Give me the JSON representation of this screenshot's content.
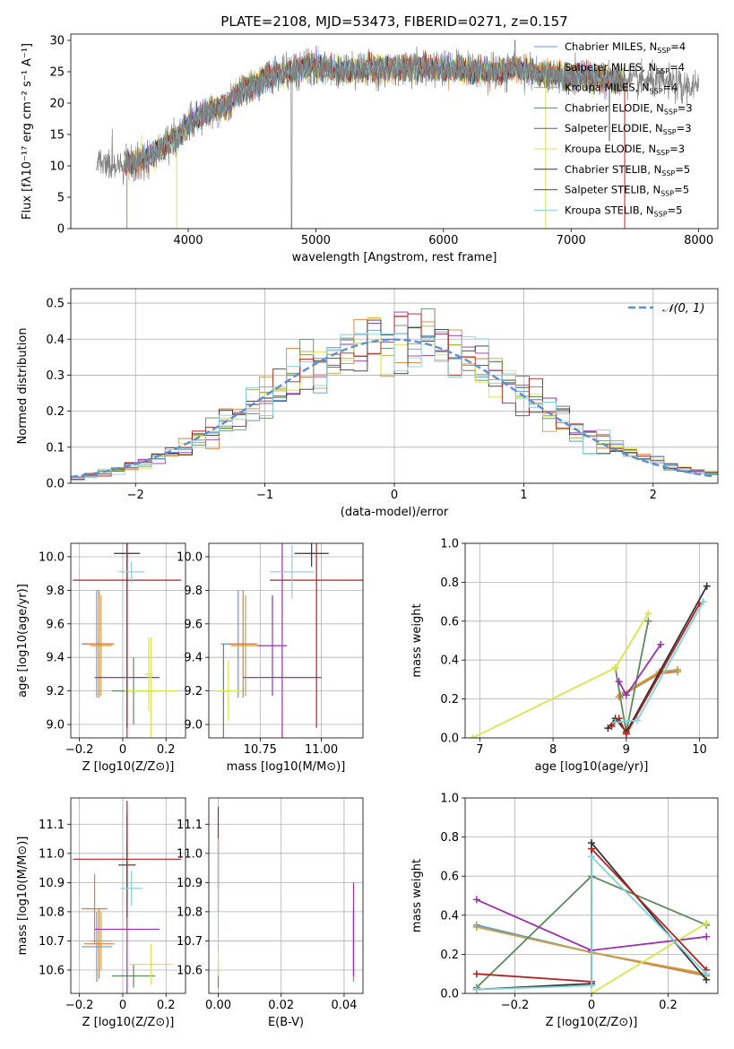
{
  "figure_title": "PLATE=2108, MJD=53473, FIBERID=0271, z=0.157",
  "series": [
    {
      "label": "Chabrier MILES, N",
      "sub": "SSP",
      "tail": "=4",
      "color": "#5a9bd4"
    },
    {
      "label": "Salpeter MILES, N",
      "sub": "SSP",
      "tail": "=4",
      "color": "#e07b39"
    },
    {
      "label": "Kroupa MILES, N",
      "sub": "SSP",
      "tail": "=4",
      "color": "#c8a046"
    },
    {
      "label": "Chabrier ELODIE, N",
      "sub": "SSP",
      "tail": "=3",
      "color": "#5c8a5c"
    },
    {
      "label": "Salpeter ELODIE, N",
      "sub": "SSP",
      "tail": "=3",
      "color": "#9b30b0"
    },
    {
      "label": "Kroupa ELODIE, N",
      "sub": "SSP",
      "tail": "=3",
      "color": "#d4e84a"
    },
    {
      "label": "Chabrier STELIB, N",
      "sub": "SSP",
      "tail": "=5",
      "color": "#333333"
    },
    {
      "label": "Salpeter STELIB, N",
      "sub": "SSP",
      "tail": "=5",
      "color": "#b22222"
    },
    {
      "label": "Kroupa STELIB, N",
      "sub": "SSP",
      "tail": "=5",
      "color": "#7ed3e0"
    }
  ],
  "chart_data": [
    {
      "id": "spectrum",
      "type": "line",
      "xlabel": "wavelength [Angstrom, rest frame]",
      "ylabel": "Flux [fλ10⁻¹⁷ erg cm⁻² s⁻¹ A⁻¹]",
      "xlim": [
        3080,
        8150
      ],
      "ylim": [
        0,
        31
      ],
      "xticks": [
        4000,
        5000,
        6000,
        7000,
        8000
      ],
      "yticks": [
        0,
        5,
        10,
        15,
        20,
        25,
        30
      ],
      "legend": "upper right",
      "data_color": "#808080",
      "data_range": [
        3280,
        8000
      ],
      "continuum_points": [
        [
          3280,
          10.2
        ],
        [
          3550,
          10.5
        ],
        [
          3700,
          11.5
        ],
        [
          3900,
          14.5
        ],
        [
          4000,
          16.5
        ],
        [
          4150,
          18.5
        ],
        [
          4300,
          19.5
        ],
        [
          4400,
          21.5
        ],
        [
          4600,
          24
        ],
        [
          4800,
          25
        ],
        [
          5000,
          25.8
        ],
        [
          5200,
          25.2
        ],
        [
          5400,
          25.5
        ],
        [
          5600,
          25.5
        ],
        [
          5800,
          25.8
        ],
        [
          6000,
          25.5
        ],
        [
          6200,
          25.3
        ],
        [
          6400,
          25
        ],
        [
          6600,
          25.5
        ],
        [
          6800,
          24.5
        ],
        [
          7000,
          24.2
        ],
        [
          7200,
          24
        ],
        [
          7400,
          23.5
        ],
        [
          7600,
          23.5
        ],
        [
          7800,
          23
        ],
        [
          8000,
          22.5
        ]
      ],
      "model_range": [
        3500,
        7420
      ],
      "model_cutoffs": [
        {
          "series": 1,
          "x": 3520
        },
        {
          "series": 5,
          "x": 3910
        },
        {
          "series": 5,
          "x": 6800
        },
        {
          "series": 7,
          "x": 7420
        }
      ],
      "data_features": [
        {
          "x": 4810,
          "y": 0
        },
        {
          "x": 6560,
          "y": 30
        },
        {
          "x": 7300,
          "y": 14
        },
        {
          "x": 7870,
          "y": 20
        }
      ]
    },
    {
      "id": "residuals",
      "type": "line",
      "xlabel": "(data-model)/error",
      "ylabel": "Normed distribution",
      "xlim": [
        -2.5,
        2.5
      ],
      "ylim": [
        0,
        0.54
      ],
      "xticks": [
        -2,
        -1,
        0,
        1,
        2
      ],
      "yticks": [
        0,
        0.1,
        0.2,
        0.3,
        0.4,
        0.5
      ],
      "legend": "upper right",
      "gaussian": {
        "label": "𝒩(0, 1)",
        "mean": 0,
        "sigma": 1,
        "color": "#5b8fd6"
      },
      "bins": 48
    },
    {
      "id": "age-vs-Z",
      "type": "scatter",
      "xlabel": "Z [log10(Z/Z⊙)]",
      "ylabel": "age [log10(age/yr)]",
      "xlim": [
        -0.24,
        0.29
      ],
      "ylim": [
        8.92,
        10.08
      ],
      "xticks": [
        -0.2,
        0.0,
        0.2
      ],
      "yticks": [
        9.0,
        9.2,
        9.4,
        9.6,
        9.8,
        10.0
      ],
      "errorbars": [
        {
          "s": 0,
          "x": -0.12,
          "xerr": 0.07,
          "y": 9.48,
          "yerr": 0.32
        },
        {
          "s": 1,
          "x": -0.11,
          "xerr": 0.07,
          "y": 9.48,
          "yerr": 0.32
        },
        {
          "s": 2,
          "x": -0.1,
          "xerr": 0.05,
          "y": 9.47,
          "yerr": 0.3
        },
        {
          "s": 3,
          "x": 0.05,
          "xerr": 0.1,
          "y": 9.2,
          "yerr": 0.2
        },
        {
          "s": 4,
          "x": 0.02,
          "xerr": 0.15,
          "y": 9.28,
          "yerr": 0.8
        },
        {
          "s": 5,
          "x": 0.13,
          "xerr": 0.12,
          "y": 9.2,
          "yerr": 0.32
        },
        {
          "s": 6,
          "x": 0.02,
          "xerr": 0.06,
          "y": 10.02,
          "yerr": 0.08
        },
        {
          "s": 7,
          "x": 0.02,
          "xerr": 0.25,
          "y": 9.86,
          "yerr": 0.88
        },
        {
          "s": 8,
          "x": 0.04,
          "xerr": 0.06,
          "y": 9.91,
          "yerr": 0.06
        },
        {
          "s": 5,
          "x": 0.12,
          "xerr": 0.02,
          "y": 9.3,
          "yerr": 0.22
        }
      ]
    },
    {
      "id": "age-vs-mass",
      "type": "scatter",
      "xlabel": "mass [log10(M/M⊙)]",
      "ylabel": "",
      "xlim": [
        10.54,
        11.17
      ],
      "ylim": [
        8.92,
        10.08
      ],
      "xticks": [
        10.75,
        11.0
      ],
      "xticklabels": [
        "10.75",
        "11.00"
      ],
      "yticks": [
        9.0,
        9.2,
        9.4,
        9.6,
        9.8,
        10.0
      ],
      "errorbars": [
        {
          "s": 0,
          "x": 10.66,
          "xerr": 0.07,
          "y": 9.48,
          "yerr": 0.32
        },
        {
          "s": 1,
          "x": 10.68,
          "xerr": 0.06,
          "y": 9.48,
          "yerr": 0.32
        },
        {
          "s": 2,
          "x": 10.69,
          "xerr": 0.06,
          "y": 9.47,
          "yerr": 0.3
        },
        {
          "s": 3,
          "x": 10.6,
          "xerr": 0.02,
          "y": 9.2,
          "yerr": 0.28
        },
        {
          "s": 4,
          "x": 10.84,
          "xerr": 0.16,
          "y": 9.28,
          "yerr": 0.82
        },
        {
          "s": 5,
          "x": 10.62,
          "xerr": 0.05,
          "y": 9.2,
          "yerr": 0.18
        },
        {
          "s": 6,
          "x": 10.96,
          "xerr": 0.07,
          "y": 10.02,
          "yerr": 0.08
        },
        {
          "s": 7,
          "x": 10.98,
          "xerr": 0.19,
          "y": 9.86,
          "yerr": 0.88
        },
        {
          "s": 8,
          "x": 10.88,
          "xerr": 0.09,
          "y": 9.91,
          "yerr": 0.16
        },
        {
          "s": 4,
          "x": 10.8,
          "xerr": 0.06,
          "y": 9.47,
          "yerr": 0.3
        }
      ]
    },
    {
      "id": "mass-vs-Z",
      "type": "scatter",
      "xlabel": "Z [log10(Z/Z⊙)]",
      "ylabel": "mass [log10(M/M⊙)]",
      "xlim": [
        -0.24,
        0.29
      ],
      "ylim": [
        10.52,
        11.19
      ],
      "xticks": [
        -0.2,
        0.0,
        0.2
      ],
      "yticks": [
        10.6,
        10.7,
        10.8,
        10.9,
        11.0,
        11.1
      ],
      "errorbars": [
        {
          "s": 0,
          "x": -0.12,
          "xerr": 0.07,
          "y": 10.68,
          "yerr": 0.12
        },
        {
          "s": 1,
          "x": -0.11,
          "xerr": 0.07,
          "y": 10.69,
          "yerr": 0.12
        },
        {
          "s": 2,
          "x": -0.1,
          "xerr": 0.05,
          "y": 10.7,
          "yerr": 0.1
        },
        {
          "s": 3,
          "x": 0.05,
          "xerr": 0.1,
          "y": 10.58,
          "yerr": 0.04
        },
        {
          "s": 4,
          "x": 0.02,
          "xerr": 0.15,
          "y": 10.74,
          "yerr": 0.4
        },
        {
          "s": 5,
          "x": 0.13,
          "xerr": 0.1,
          "y": 10.62,
          "yerr": 0.07
        },
        {
          "s": 6,
          "x": 0.02,
          "xerr": 0.04,
          "y": 10.96,
          "yerr": 0.08
        },
        {
          "s": 7,
          "x": 0.02,
          "xerr": 0.25,
          "y": 10.98,
          "yerr": 0.2
        },
        {
          "s": 8,
          "x": 0.04,
          "xerr": 0.05,
          "y": 10.88,
          "yerr": 0.06
        },
        {
          "s": 1,
          "x": -0.13,
          "xerr": 0.06,
          "y": 10.81,
          "yerr": 0.12
        }
      ]
    },
    {
      "id": "mass-vs-EBV",
      "type": "scatter",
      "xlabel": "E(B-V)",
      "ylabel": "",
      "xlim": [
        -0.003,
        0.046
      ],
      "ylim": [
        10.52,
        11.19
      ],
      "xticks": [
        0.0,
        0.02,
        0.04
      ],
      "xticklabels": [
        "0.00",
        "0.02",
        "0.04"
      ],
      "yticks": [
        10.6,
        10.7,
        10.8,
        10.9,
        11.0,
        11.1
      ],
      "errorbars": [
        {
          "s": 0,
          "x": 0.043,
          "xerr": 0,
          "y": 10.68,
          "yerr": 0.12
        },
        {
          "s": 1,
          "x": 0.043,
          "xerr": 0,
          "y": 10.69,
          "yerr": 0.12
        },
        {
          "s": 2,
          "x": 0.043,
          "xerr": 0,
          "y": 10.7,
          "yerr": 0.1
        },
        {
          "s": 3,
          "x": 0.0,
          "xerr": 0,
          "y": 10.58,
          "yerr": 0.04
        },
        {
          "s": 4,
          "x": 0.043,
          "xerr": 0,
          "y": 10.74,
          "yerr": 0.16
        },
        {
          "s": 5,
          "x": 0.0,
          "xerr": 0,
          "y": 10.62,
          "yerr": 0.04
        },
        {
          "s": 6,
          "x": 0.0,
          "xerr": 0,
          "y": 10.96,
          "yerr": 0.08
        },
        {
          "s": 7,
          "x": 0.0,
          "xerr": 0,
          "y": 10.98,
          "yerr": 0.18
        },
        {
          "s": 8,
          "x": 0.0,
          "xerr": 0,
          "y": 10.88,
          "yerr": 0.17
        }
      ]
    },
    {
      "id": "weight-vs-age",
      "type": "line",
      "xlabel": "age [log10(age/yr)]",
      "ylabel": "mass weight",
      "xlim": [
        6.8,
        10.25
      ],
      "ylim": [
        0,
        1
      ],
      "xticks": [
        7,
        8,
        9,
        10
      ],
      "yticks": [
        0,
        0.2,
        0.4,
        0.6,
        0.8,
        1.0
      ],
      "lines": [
        {
          "s": 0,
          "pts": [
            [
              8.95,
              0.22
            ],
            [
              9.45,
              0.33
            ],
            [
              9.7,
              0.35
            ]
          ]
        },
        {
          "s": 1,
          "pts": [
            [
              8.9,
              0.21
            ],
            [
              9.45,
              0.33
            ],
            [
              9.7,
              0.34
            ]
          ]
        },
        {
          "s": 2,
          "pts": [
            [
              8.92,
              0.22
            ],
            [
              9.45,
              0.34
            ],
            [
              9.7,
              0.35
            ]
          ]
        },
        {
          "s": 3,
          "pts": [
            [
              8.85,
              0.36
            ],
            [
              9.0,
              0.03
            ],
            [
              9.3,
              0.6
            ]
          ]
        },
        {
          "s": 4,
          "pts": [
            [
              8.9,
              0.29
            ],
            [
              9.0,
              0.22
            ],
            [
              9.47,
              0.48
            ]
          ]
        },
        {
          "s": 5,
          "pts": [
            [
              6.9,
              0.0
            ],
            [
              8.85,
              0.36
            ],
            [
              9.3,
              0.64
            ]
          ]
        },
        {
          "s": 6,
          "pts": [
            [
              8.75,
              0.05
            ],
            [
              8.85,
              0.1
            ],
            [
              9.0,
              0.03
            ],
            [
              10.1,
              0.78
            ]
          ]
        },
        {
          "s": 7,
          "pts": [
            [
              8.8,
              0.06
            ],
            [
              8.9,
              0.1
            ],
            [
              9.0,
              0.02
            ],
            [
              10.0,
              0.69
            ]
          ]
        },
        {
          "s": 8,
          "pts": [
            [
              8.85,
              0.08
            ],
            [
              9.15,
              0.09
            ],
            [
              10.05,
              0.7
            ]
          ]
        }
      ]
    },
    {
      "id": "weight-vs-Z",
      "type": "line",
      "xlabel": "Z [log10(Z/Z⊙)]",
      "ylabel": "mass weight",
      "xlim": [
        -0.33,
        0.33
      ],
      "ylim": [
        0,
        1
      ],
      "xticks": [
        -0.2,
        0.0,
        0.2
      ],
      "yticks": [
        0,
        0.2,
        0.4,
        0.6,
        0.8,
        1.0
      ],
      "lines": [
        {
          "s": 0,
          "pts": [
            [
              -0.3,
              0.35
            ],
            [
              0.0,
              0.21
            ],
            [
              0.3,
              0.09
            ]
          ]
        },
        {
          "s": 1,
          "pts": [
            [
              -0.3,
              0.34
            ],
            [
              0.0,
              0.21
            ],
            [
              0.3,
              0.09
            ]
          ]
        },
        {
          "s": 2,
          "pts": [
            [
              -0.3,
              0.34
            ],
            [
              0.0,
              0.21
            ],
            [
              0.3,
              0.1
            ]
          ]
        },
        {
          "s": 3,
          "pts": [
            [
              -0.3,
              0.03
            ],
            [
              0.0,
              0.6
            ],
            [
              0.3,
              0.35
            ]
          ]
        },
        {
          "s": 4,
          "pts": [
            [
              -0.3,
              0.48
            ],
            [
              0.0,
              0.22
            ],
            [
              0.3,
              0.29
            ]
          ]
        },
        {
          "s": 5,
          "pts": [
            [
              0.0,
              0.0
            ],
            [
              0.3,
              0.36
            ]
          ]
        },
        {
          "s": 6,
          "pts": [
            [
              -0.3,
              0.02
            ],
            [
              0.0,
              0.05
            ],
            [
              0.0,
              0.77
            ],
            [
              0.3,
              0.07
            ]
          ]
        },
        {
          "s": 7,
          "pts": [
            [
              -0.3,
              0.1
            ],
            [
              0.0,
              0.06
            ],
            [
              0.0,
              0.74
            ],
            [
              0.3,
              0.12
            ]
          ]
        },
        {
          "s": 8,
          "pts": [
            [
              -0.3,
              0.02
            ],
            [
              0.0,
              0.04
            ],
            [
              0.0,
              0.7
            ],
            [
              0.3,
              0.1
            ]
          ]
        }
      ]
    }
  ]
}
